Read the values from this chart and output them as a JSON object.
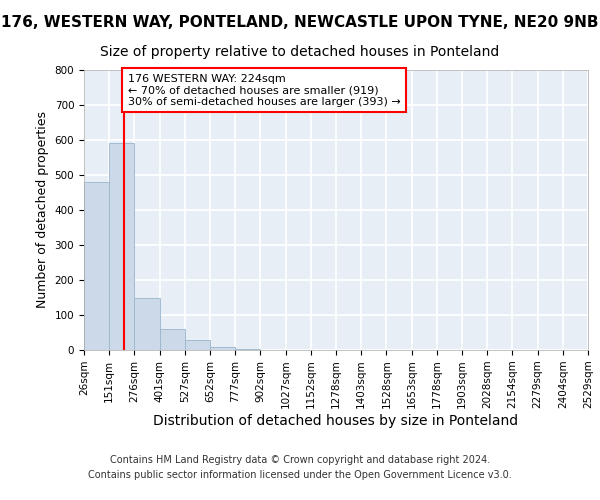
{
  "title1": "176, WESTERN WAY, PONTELAND, NEWCASTLE UPON TYNE, NE20 9NB",
  "title2": "Size of property relative to detached houses in Ponteland",
  "xlabel": "Distribution of detached houses by size in Ponteland",
  "ylabel": "Number of detached properties",
  "bar_color": "#ccd9e8",
  "bar_edgecolor": "#9ab5cc",
  "property_line_x": 224,
  "property_line_color": "red",
  "annotation_text": "176 WESTERN WAY: 224sqm\n← 70% of detached houses are smaller (919)\n30% of semi-detached houses are larger (393) →",
  "annotation_box_color": "white",
  "annotation_box_edgecolor": "red",
  "footer1": "Contains HM Land Registry data © Crown copyright and database right 2024.",
  "footer2": "Contains public sector information licensed under the Open Government Licence v3.0.",
  "bin_edges": [
    26,
    151,
    276,
    401,
    527,
    652,
    777,
    902,
    1027,
    1152,
    1278,
    1403,
    1528,
    1653,
    1778,
    1903,
    2028,
    2154,
    2279,
    2404,
    2529
  ],
  "bar_heights": [
    480,
    590,
    150,
    60,
    30,
    8,
    3,
    0,
    0,
    0,
    0,
    0,
    0,
    0,
    0,
    0,
    0,
    0,
    0,
    0
  ],
  "ylim": [
    0,
    800
  ],
  "yticks": [
    0,
    100,
    200,
    300,
    400,
    500,
    600,
    700,
    800
  ],
  "background_color": "#e8eef5",
  "grid_color": "white",
  "title1_fontsize": 11,
  "title2_fontsize": 10,
  "tick_labelsize": 7.5,
  "ylabel_fontsize": 9,
  "xlabel_fontsize": 10,
  "footer_fontsize": 7
}
